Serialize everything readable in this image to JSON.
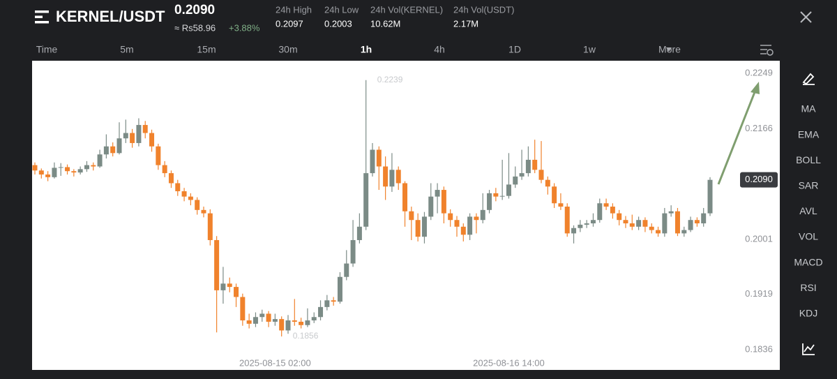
{
  "header": {
    "pair": "KERNEL/USDT",
    "price": "0.2090",
    "fiat_price": "≈ Rs58.96",
    "change": "+3.88%",
    "stats": [
      {
        "label": "24h High",
        "value": "0.2097"
      },
      {
        "label": "24h Low",
        "value": "0.2003"
      },
      {
        "label": "24h Vol(KERNEL)",
        "value": "10.62M"
      },
      {
        "label": "24h Vol(USDT)",
        "value": "2.17M"
      }
    ]
  },
  "timeframes": [
    "Time",
    "5m",
    "15m",
    "30m",
    "1h",
    "4h",
    "1D",
    "1w",
    "More"
  ],
  "indicators": [
    "MA",
    "EMA",
    "BOLL",
    "SAR",
    "AVL",
    "VOL",
    "MACD",
    "RSI",
    "KDJ"
  ],
  "chart_data": {
    "type": "candlestick",
    "up_color": "#7b8b86",
    "down_color": "#f0822c",
    "ylim": [
      0.1806,
      0.2268
    ],
    "yticks": [
      0.2249,
      0.2166,
      0.2001,
      0.1919,
      0.1836
    ],
    "last_price": {
      "value": 0.209,
      "label": "0.2090"
    },
    "annotations": [
      {
        "value": 0.2239,
        "label": "0.2239"
      },
      {
        "value": 0.1856,
        "label": "0.1856"
      }
    ],
    "categories": [
      null,
      null,
      null,
      null,
      null,
      null,
      null,
      null,
      null,
      null,
      null,
      null,
      null,
      null,
      null,
      null,
      null,
      null,
      null,
      null,
      null,
      null,
      null,
      null,
      null,
      null,
      null,
      null,
      null,
      null,
      null,
      null,
      null,
      null,
      null,
      null,
      null,
      "2025-08-15 02:00",
      null,
      null,
      null,
      null,
      null,
      null,
      null,
      null,
      null,
      null,
      null,
      null,
      null,
      null,
      null,
      null,
      null,
      null,
      null,
      null,
      null,
      null,
      null,
      null,
      null,
      null,
      null,
      null,
      null,
      null,
      null,
      null,
      null,
      null,
      null,
      "2025-08-16 14:00",
      null,
      null,
      null,
      null,
      null,
      null,
      null,
      null,
      null,
      null,
      null,
      null,
      null,
      null,
      null,
      null,
      null,
      null,
      null,
      null,
      null,
      null,
      null,
      null,
      null,
      null,
      null,
      null,
      null,
      null,
      null
    ],
    "candles": [
      [
        0.2112,
        0.2116,
        0.2098,
        0.2104
      ],
      [
        0.2104,
        0.2107,
        0.2092,
        0.2098
      ],
      [
        0.2098,
        0.2103,
        0.2088,
        0.2094
      ],
      [
        0.2094,
        0.2116,
        0.2092,
        0.2108
      ],
      [
        0.2108,
        0.2115,
        0.2096,
        0.2109
      ],
      [
        0.2109,
        0.2113,
        0.2098,
        0.2103
      ],
      [
        0.2103,
        0.2106,
        0.2095,
        0.2101
      ],
      [
        0.2101,
        0.211,
        0.2098,
        0.2106
      ],
      [
        0.2106,
        0.2118,
        0.2102,
        0.2112
      ],
      [
        0.2112,
        0.2116,
        0.2104,
        0.211
      ],
      [
        0.211,
        0.2135,
        0.2108,
        0.2128
      ],
      [
        0.2128,
        0.2158,
        0.2122,
        0.214
      ],
      [
        0.214,
        0.2146,
        0.2125,
        0.213
      ],
      [
        0.213,
        0.2176,
        0.2128,
        0.2152
      ],
      [
        0.2152,
        0.218,
        0.2145,
        0.216
      ],
      [
        0.216,
        0.2166,
        0.2138,
        0.2145
      ],
      [
        0.2145,
        0.2182,
        0.214,
        0.2172
      ],
      [
        0.2172,
        0.2178,
        0.2152,
        0.216
      ],
      [
        0.216,
        0.2165,
        0.2132,
        0.214
      ],
      [
        0.214,
        0.2144,
        0.2105,
        0.2112
      ],
      [
        0.2112,
        0.2118,
        0.2094,
        0.21
      ],
      [
        0.21,
        0.2104,
        0.2078,
        0.2085
      ],
      [
        0.2085,
        0.209,
        0.2066,
        0.2073
      ],
      [
        0.2073,
        0.2078,
        0.2058,
        0.2065
      ],
      [
        0.2065,
        0.207,
        0.2052,
        0.206
      ],
      [
        0.206,
        0.2064,
        0.2038,
        0.2045
      ],
      [
        0.2045,
        0.205,
        0.2034,
        0.204
      ],
      [
        0.204,
        0.2046,
        0.1992,
        0.2
      ],
      [
        0.2,
        0.2006,
        0.1862,
        0.1925
      ],
      [
        0.1925,
        0.196,
        0.1905,
        0.1935
      ],
      [
        0.1935,
        0.1944,
        0.1922,
        0.193
      ],
      [
        0.193,
        0.1935,
        0.19,
        0.1915
      ],
      [
        0.1915,
        0.192,
        0.1872,
        0.188
      ],
      [
        0.188,
        0.189,
        0.1868,
        0.1875
      ],
      [
        0.1875,
        0.1892,
        0.187,
        0.1885
      ],
      [
        0.1885,
        0.1896,
        0.1878,
        0.189
      ],
      [
        0.189,
        0.1894,
        0.187,
        0.1878
      ],
      [
        0.1878,
        0.189,
        0.1872,
        0.1882
      ],
      [
        0.1882,
        0.1886,
        0.1856,
        0.1865
      ],
      [
        0.1865,
        0.1888,
        0.186,
        0.188
      ],
      [
        0.188,
        0.1912,
        0.1872,
        0.1878
      ],
      [
        0.1878,
        0.1884,
        0.1868,
        0.1873
      ],
      [
        0.1873,
        0.1898,
        0.187,
        0.188
      ],
      [
        0.188,
        0.1892,
        0.1876,
        0.1885
      ],
      [
        0.1885,
        0.191,
        0.188,
        0.19
      ],
      [
        0.19,
        0.1918,
        0.1895,
        0.191
      ],
      [
        0.191,
        0.1915,
        0.1902,
        0.1908
      ],
      [
        0.1908,
        0.1952,
        0.1905,
        0.1945
      ],
      [
        0.1945,
        0.1985,
        0.194,
        0.1965
      ],
      [
        0.1965,
        0.203,
        0.196,
        0.2
      ],
      [
        0.2,
        0.204,
        0.1995,
        0.202
      ],
      [
        0.202,
        0.2239,
        0.2015,
        0.21
      ],
      [
        0.21,
        0.2145,
        0.2095,
        0.2135
      ],
      [
        0.2135,
        0.214,
        0.2075,
        0.211
      ],
      [
        0.211,
        0.2125,
        0.206,
        0.208
      ],
      [
        0.208,
        0.213,
        0.2072,
        0.2105
      ],
      [
        0.2105,
        0.211,
        0.2075,
        0.2085
      ],
      [
        0.2085,
        0.2088,
        0.202,
        0.2043
      ],
      [
        0.2043,
        0.205,
        0.2,
        0.203
      ],
      [
        0.203,
        0.204,
        0.1998,
        0.2005
      ],
      [
        0.2005,
        0.2042,
        0.1995,
        0.2035
      ],
      [
        0.2035,
        0.2085,
        0.203,
        0.2065
      ],
      [
        0.2065,
        0.2085,
        0.204,
        0.2075
      ],
      [
        0.2075,
        0.208,
        0.2025,
        0.204
      ],
      [
        0.204,
        0.2046,
        0.202,
        0.203
      ],
      [
        0.203,
        0.2036,
        0.2005,
        0.202
      ],
      [
        0.202,
        0.2025,
        0.1998,
        0.2008
      ],
      [
        0.2008,
        0.204,
        0.2,
        0.2035
      ],
      [
        0.2035,
        0.204,
        0.201,
        0.203
      ],
      [
        0.203,
        0.207,
        0.2025,
        0.2045
      ],
      [
        0.2045,
        0.2075,
        0.204,
        0.207
      ],
      [
        0.207,
        0.2078,
        0.2058,
        0.2065
      ],
      [
        0.2065,
        0.212,
        0.206,
        0.2066
      ],
      [
        0.2066,
        0.213,
        0.2062,
        0.2083
      ],
      [
        0.2083,
        0.211,
        0.2078,
        0.2095
      ],
      [
        0.2095,
        0.2135,
        0.209,
        0.21
      ],
      [
        0.21,
        0.214,
        0.2095,
        0.212
      ],
      [
        0.212,
        0.215,
        0.21,
        0.2105
      ],
      [
        0.2105,
        0.2148,
        0.2085,
        0.209
      ],
      [
        0.209,
        0.2095,
        0.2068,
        0.208
      ],
      [
        0.208,
        0.2085,
        0.2048,
        0.2055
      ],
      [
        0.2055,
        0.207,
        0.2045,
        0.205
      ],
      [
        0.205,
        0.2055,
        0.2005,
        0.201
      ],
      [
        0.201,
        0.2022,
        0.1995,
        0.2018
      ],
      [
        0.2018,
        0.203,
        0.2012,
        0.2023
      ],
      [
        0.2023,
        0.203,
        0.2018,
        0.2025
      ],
      [
        0.2025,
        0.204,
        0.202,
        0.203
      ],
      [
        0.203,
        0.2062,
        0.2026,
        0.2055
      ],
      [
        0.2055,
        0.2062,
        0.2045,
        0.205
      ],
      [
        0.205,
        0.2055,
        0.2032,
        0.204
      ],
      [
        0.204,
        0.2045,
        0.2022,
        0.203
      ],
      [
        0.203,
        0.2036,
        0.2018,
        0.2025
      ],
      [
        0.2025,
        0.2038,
        0.2015,
        0.202
      ],
      [
        0.202,
        0.2035,
        0.2015,
        0.203
      ],
      [
        0.203,
        0.2034,
        0.2012,
        0.202
      ],
      [
        0.202,
        0.2025,
        0.201,
        0.2015
      ],
      [
        0.2015,
        0.202,
        0.2005,
        0.201
      ],
      [
        0.201,
        0.2048,
        0.2005,
        0.204
      ],
      [
        0.204,
        0.2052,
        0.2035,
        0.2043
      ],
      [
        0.2043,
        0.2048,
        0.2006,
        0.201
      ],
      [
        0.201,
        0.202,
        0.2005,
        0.2015
      ],
      [
        0.2015,
        0.2035,
        0.2012,
        0.203
      ],
      [
        0.203,
        0.2034,
        0.202,
        0.2025
      ],
      [
        0.2025,
        0.2048,
        0.202,
        0.204
      ],
      [
        0.204,
        0.2094,
        0.2036,
        0.209
      ]
    ]
  }
}
